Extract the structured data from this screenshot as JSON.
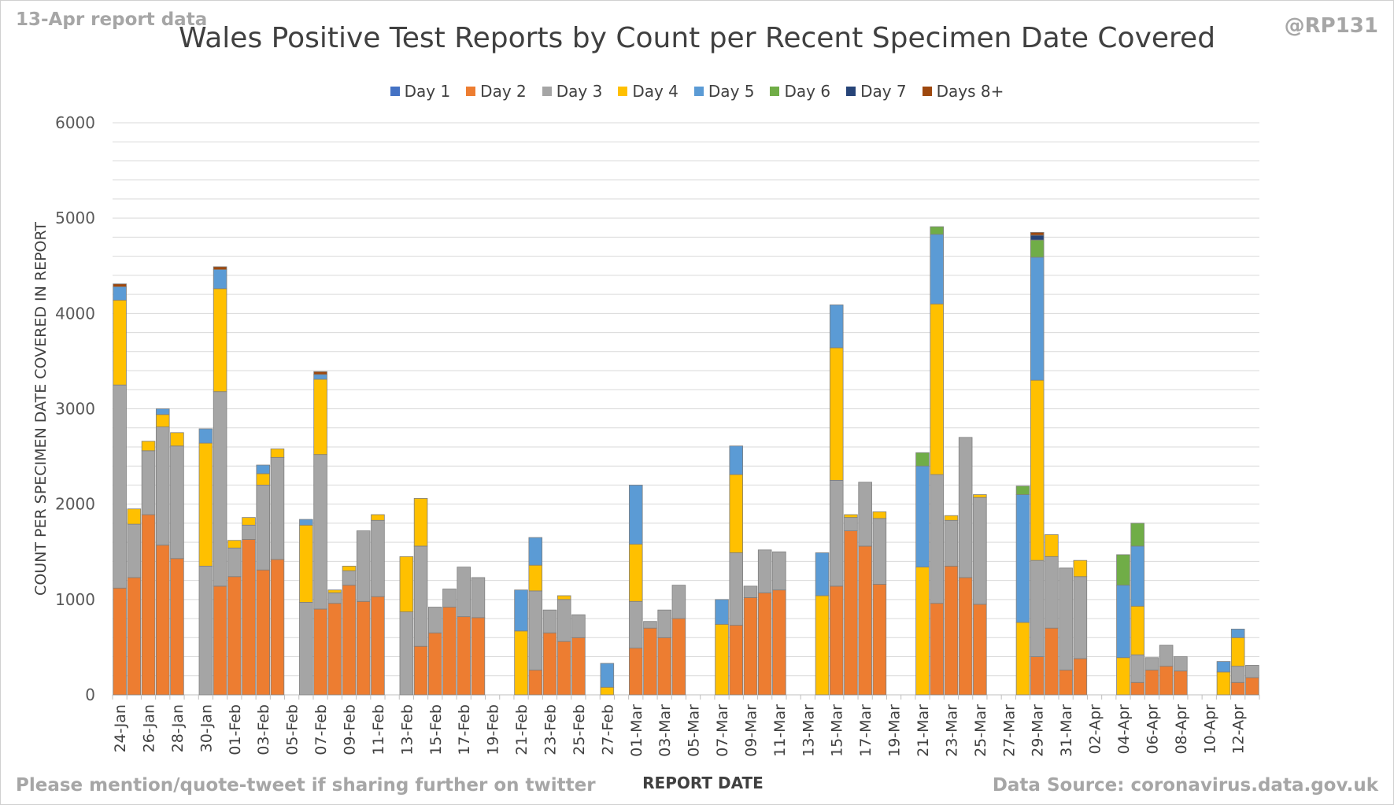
{
  "header": {
    "corner_left": "13-Apr report data",
    "corner_right": "@RP131",
    "footer_left": "Please mention/quote-tweet if sharing further on twitter",
    "footer_right": "Data Source: coronavirus.data.gov.uk"
  },
  "chart_data": {
    "type": "bar",
    "stacked": true,
    "title": "Wales Positive Test Reports by Count per Recent Specimen Date Covered",
    "xlabel": "REPORT DATE",
    "ylabel": "COUNT PER SPECIMEN DATE COVERED IN REPORT",
    "ylim": [
      0,
      6000
    ],
    "yticks": [
      0,
      1000,
      2000,
      3000,
      4000,
      5000,
      6000
    ],
    "grid": true,
    "legend_position": "top",
    "categories": [
      "24-Jan",
      "25-Jan",
      "26-Jan",
      "27-Jan",
      "28-Jan",
      "29-Jan",
      "30-Jan",
      "31-Jan",
      "01-Feb",
      "02-Feb",
      "03-Feb",
      "04-Feb",
      "05-Feb",
      "06-Feb",
      "07-Feb",
      "08-Feb",
      "09-Feb",
      "10-Feb",
      "11-Feb",
      "12-Feb",
      "13-Feb",
      "14-Feb",
      "15-Feb",
      "16-Feb",
      "17-Feb",
      "18-Feb",
      "19-Feb",
      "20-Feb",
      "21-Feb",
      "22-Feb",
      "23-Feb",
      "24-Feb",
      "25-Feb",
      "26-Feb",
      "27-Feb",
      "28-Feb",
      "01-Mar",
      "02-Mar",
      "03-Mar",
      "04-Mar",
      "05-Mar",
      "06-Mar",
      "07-Mar",
      "08-Mar",
      "09-Mar",
      "10-Mar",
      "11-Mar",
      "12-Mar",
      "13-Mar",
      "14-Mar",
      "15-Mar",
      "16-Mar",
      "17-Mar",
      "18-Mar",
      "19-Mar",
      "20-Mar",
      "21-Mar",
      "22-Mar",
      "23-Mar",
      "24-Mar",
      "25-Mar",
      "26-Mar",
      "27-Mar",
      "28-Mar",
      "29-Mar",
      "30-Mar",
      "31-Mar",
      "01-Apr",
      "02-Apr",
      "03-Apr",
      "04-Apr",
      "05-Apr",
      "06-Apr",
      "07-Apr",
      "08-Apr",
      "09-Apr",
      "10-Apr",
      "11-Apr",
      "12-Apr",
      "13-Apr"
    ],
    "tick_labels": [
      "24-Jan",
      "26-Jan",
      "28-Jan",
      "30-Jan",
      "01-Feb",
      "03-Feb",
      "05-Feb",
      "07-Feb",
      "09-Feb",
      "11-Feb",
      "13-Feb",
      "15-Feb",
      "17-Feb",
      "19-Feb",
      "21-Feb",
      "23-Feb",
      "25-Feb",
      "27-Feb",
      "01-Mar",
      "03-Mar",
      "05-Mar",
      "07-Mar",
      "09-Mar",
      "11-Mar",
      "13-Mar",
      "15-Mar",
      "17-Mar",
      "19-Mar",
      "21-Mar",
      "23-Mar",
      "25-Mar",
      "27-Mar",
      "29-Mar",
      "31-Mar",
      "02-Apr",
      "04-Apr",
      "06-Apr",
      "08-Apr",
      "10-Apr",
      "12-Apr"
    ],
    "series": [
      {
        "name": "Day 1",
        "color": "#4472c4",
        "values": [
          0,
          0,
          0,
          0,
          0,
          0,
          0,
          0,
          0,
          0,
          0,
          0,
          0,
          0,
          0,
          0,
          0,
          0,
          0,
          0,
          0,
          0,
          0,
          0,
          0,
          0,
          0,
          0,
          0,
          0,
          0,
          0,
          0,
          0,
          0,
          0,
          0,
          0,
          0,
          0,
          0,
          0,
          0,
          0,
          0,
          0,
          0,
          0,
          0,
          0,
          0,
          0,
          0,
          0,
          0,
          0,
          0,
          0,
          0,
          0,
          0,
          0,
          0,
          0,
          0,
          0,
          0,
          0,
          0,
          0,
          0,
          0,
          0,
          0,
          0,
          0,
          0,
          0,
          0,
          0
        ]
      },
      {
        "name": "Day 2",
        "color": "#ed7d31",
        "values": [
          1120,
          1230,
          1890,
          1570,
          1430,
          0,
          0,
          1140,
          1240,
          1630,
          1310,
          1420,
          0,
          0,
          900,
          960,
          1150,
          980,
          1030,
          0,
          0,
          510,
          650,
          920,
          820,
          810,
          0,
          0,
          0,
          260,
          650,
          560,
          600,
          0,
          0,
          0,
          490,
          700,
          600,
          800,
          0,
          0,
          0,
          730,
          1020,
          1070,
          1100,
          0,
          0,
          0,
          1140,
          1720,
          1560,
          1160,
          0,
          0,
          0,
          960,
          1350,
          1230,
          950,
          0,
          0,
          0,
          400,
          700,
          260,
          380,
          0,
          0,
          0,
          130,
          260,
          300,
          250,
          0,
          0,
          0,
          130,
          180
        ]
      },
      {
        "name": "Day 3",
        "color": "#a5a5a5",
        "values": [
          2130,
          560,
          670,
          1240,
          1180,
          0,
          1350,
          2040,
          300,
          150,
          890,
          1070,
          0,
          970,
          1620,
          110,
          150,
          740,
          800,
          0,
          870,
          1050,
          270,
          190,
          520,
          420,
          0,
          0,
          0,
          830,
          240,
          440,
          240,
          0,
          0,
          0,
          490,
          70,
          290,
          350,
          0,
          0,
          0,
          760,
          120,
          450,
          400,
          0,
          0,
          0,
          1110,
          140,
          670,
          690,
          0,
          0,
          0,
          1350,
          480,
          1470,
          1120,
          0,
          0,
          0,
          1010,
          750,
          1070,
          860,
          0,
          0,
          0,
          290,
          130,
          220,
          150,
          0,
          0,
          0,
          170,
          130
        ]
      },
      {
        "name": "Day 4",
        "color": "#ffc000",
        "values": [
          890,
          160,
          100,
          130,
          140,
          0,
          1290,
          1080,
          80,
          80,
          120,
          90,
          0,
          810,
          790,
          30,
          50,
          0,
          60,
          0,
          580,
          500,
          0,
          0,
          0,
          0,
          0,
          0,
          670,
          270,
          0,
          40,
          0,
          0,
          80,
          0,
          600,
          0,
          0,
          0,
          0,
          0,
          740,
          820,
          0,
          0,
          0,
          0,
          0,
          1040,
          1390,
          30,
          0,
          70,
          0,
          0,
          1340,
          1790,
          50,
          0,
          30,
          0,
          0,
          760,
          1890,
          230,
          0,
          170,
          0,
          0,
          390,
          510,
          0,
          0,
          0,
          0,
          0,
          240,
          300,
          0
        ]
      },
      {
        "name": "Day 5",
        "color": "#5b9bd5",
        "values": [
          140,
          0,
          0,
          60,
          0,
          0,
          150,
          200,
          0,
          0,
          90,
          0,
          0,
          60,
          50,
          0,
          0,
          0,
          0,
          0,
          0,
          0,
          0,
          0,
          0,
          0,
          0,
          0,
          430,
          290,
          0,
          0,
          0,
          0,
          250,
          0,
          620,
          0,
          0,
          0,
          0,
          0,
          260,
          300,
          0,
          0,
          0,
          0,
          0,
          450,
          450,
          0,
          0,
          0,
          0,
          0,
          1060,
          730,
          0,
          0,
          0,
          0,
          0,
          1340,
          1290,
          0,
          0,
          0,
          0,
          0,
          760,
          630,
          0,
          0,
          0,
          0,
          0,
          110,
          90,
          0
        ]
      },
      {
        "name": "Day 6",
        "color": "#70ad47",
        "values": [
          0,
          0,
          0,
          0,
          0,
          0,
          0,
          0,
          0,
          0,
          0,
          0,
          0,
          0,
          0,
          0,
          0,
          0,
          0,
          0,
          0,
          0,
          0,
          0,
          0,
          0,
          0,
          0,
          0,
          0,
          0,
          0,
          0,
          0,
          0,
          0,
          0,
          0,
          0,
          0,
          0,
          0,
          0,
          0,
          0,
          0,
          0,
          0,
          0,
          0,
          0,
          0,
          0,
          0,
          0,
          0,
          140,
          80,
          0,
          0,
          0,
          0,
          0,
          90,
          180,
          0,
          0,
          0,
          0,
          0,
          320,
          240,
          0,
          0,
          0,
          0,
          0,
          0,
          0,
          0
        ]
      },
      {
        "name": "Day 7",
        "color": "#264478",
        "values": [
          0,
          0,
          0,
          0,
          0,
          0,
          0,
          0,
          0,
          0,
          0,
          0,
          0,
          0,
          0,
          0,
          0,
          0,
          0,
          0,
          0,
          0,
          0,
          0,
          0,
          0,
          0,
          0,
          0,
          0,
          0,
          0,
          0,
          0,
          0,
          0,
          0,
          0,
          0,
          0,
          0,
          0,
          0,
          0,
          0,
          0,
          0,
          0,
          0,
          0,
          0,
          0,
          0,
          0,
          0,
          0,
          0,
          0,
          0,
          0,
          0,
          0,
          0,
          0,
          50,
          0,
          0,
          0,
          0,
          0,
          0,
          0,
          0,
          0,
          0,
          0,
          0,
          0,
          0,
          0
        ]
      },
      {
        "name": "Days 8+",
        "color": "#9e480e",
        "values": [
          30,
          0,
          0,
          0,
          0,
          0,
          0,
          30,
          0,
          0,
          0,
          0,
          0,
          0,
          30,
          0,
          0,
          0,
          0,
          0,
          0,
          0,
          0,
          0,
          0,
          0,
          0,
          0,
          0,
          0,
          0,
          0,
          0,
          0,
          0,
          0,
          0,
          0,
          0,
          0,
          0,
          0,
          0,
          0,
          0,
          0,
          0,
          0,
          0,
          0,
          0,
          0,
          0,
          0,
          0,
          0,
          0,
          0,
          0,
          0,
          0,
          0,
          0,
          0,
          30,
          0,
          0,
          0,
          0,
          0,
          0,
          0,
          0,
          0,
          0,
          0,
          0,
          0,
          0,
          0
        ]
      }
    ]
  }
}
